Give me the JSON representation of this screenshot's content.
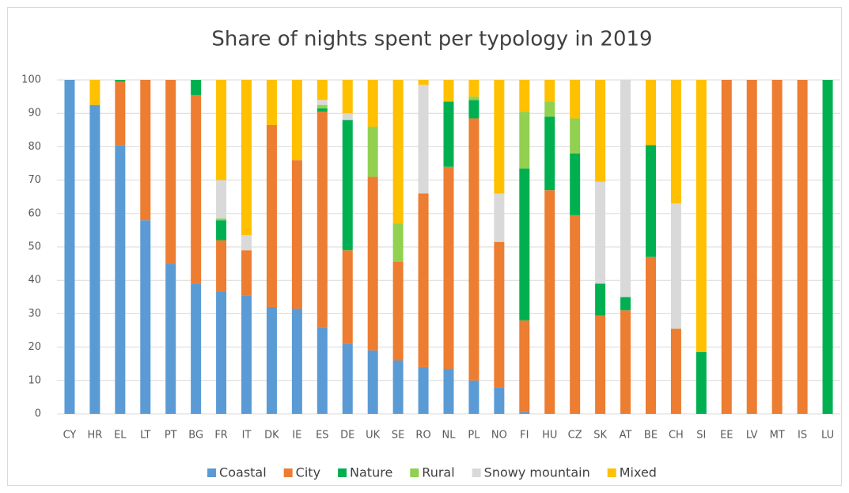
{
  "chart_data": {
    "type": "stacked-bar",
    "title": "Share of nights spent per typology in 2019",
    "categories": [
      "CY",
      "HR",
      "EL",
      "LT",
      "PT",
      "BG",
      "FR",
      "IT",
      "DK",
      "IE",
      "ES",
      "DE",
      "UK",
      "SE",
      "RO",
      "NL",
      "PL",
      "NO",
      "FI",
      "HU",
      "CZ",
      "SK",
      "AT",
      "BE",
      "CH",
      "SI",
      "EE",
      "LV",
      "MT",
      "IS",
      "LU"
    ],
    "series": [
      {
        "name": "Coastal",
        "color": "#5b9bd5",
        "values": [
          100,
          92.5,
          80.5,
          58,
          45,
          39,
          36.5,
          35.5,
          32,
          31.5,
          26,
          21,
          19,
          16,
          14,
          13.5,
          10,
          8,
          0.5,
          0,
          0,
          0,
          0,
          0,
          0,
          0,
          0,
          0,
          0,
          0,
          0
        ]
      },
      {
        "name": "City",
        "color": "#ed7d31",
        "values": [
          0,
          0,
          19,
          42,
          55,
          56.5,
          15.5,
          13.5,
          54.5,
          44.5,
          64.5,
          28,
          52,
          29.5,
          52,
          60.5,
          78.5,
          43.5,
          27.5,
          67,
          59.5,
          29.5,
          31,
          47,
          25.5,
          0,
          100,
          100,
          100,
          100,
          0
        ]
      },
      {
        "name": "Nature",
        "color": "#00b050",
        "values": [
          0,
          0,
          0.5,
          0,
          0,
          4.5,
          6,
          0,
          0,
          0,
          1,
          39,
          0,
          0,
          0,
          19.5,
          5.5,
          0,
          45.5,
          22,
          18.5,
          9.5,
          4,
          33.5,
          0,
          18.5,
          0,
          0,
          0,
          0,
          100
        ]
      },
      {
        "name": "Rural",
        "color": "#92d050",
        "values": [
          0,
          0,
          0,
          0,
          0,
          0,
          0.5,
          0,
          0,
          0,
          1,
          0,
          15,
          11.5,
          0,
          0,
          1,
          0,
          17,
          4.5,
          10.5,
          0,
          0,
          0,
          0,
          0,
          0,
          0,
          0,
          0,
          0
        ]
      },
      {
        "name": "Snowy mountain",
        "color": "#d9d9d9",
        "values": [
          0,
          0,
          0,
          0,
          0,
          0,
          11.5,
          4.5,
          0,
          0,
          1.5,
          2,
          0,
          0,
          32.5,
          0,
          0,
          14.5,
          0,
          0,
          0,
          30.5,
          65,
          0,
          37.5,
          0,
          0,
          0,
          0,
          0,
          0
        ]
      },
      {
        "name": "Mixed",
        "color": "#ffc000",
        "values": [
          0,
          7.5,
          0,
          0,
          0,
          0,
          30,
          46.5,
          13.5,
          24,
          6,
          10,
          14,
          43,
          1.5,
          6.5,
          5,
          34,
          9.5,
          6.5,
          11.5,
          30.5,
          0,
          19.5,
          37,
          81.5,
          0,
          0,
          0,
          0,
          0
        ]
      }
    ],
    "ylim": [
      0,
      100
    ],
    "yticks": [
      0,
      10,
      20,
      30,
      40,
      50,
      60,
      70,
      80,
      90,
      100
    ],
    "grid": true,
    "legend": "bottom"
  }
}
